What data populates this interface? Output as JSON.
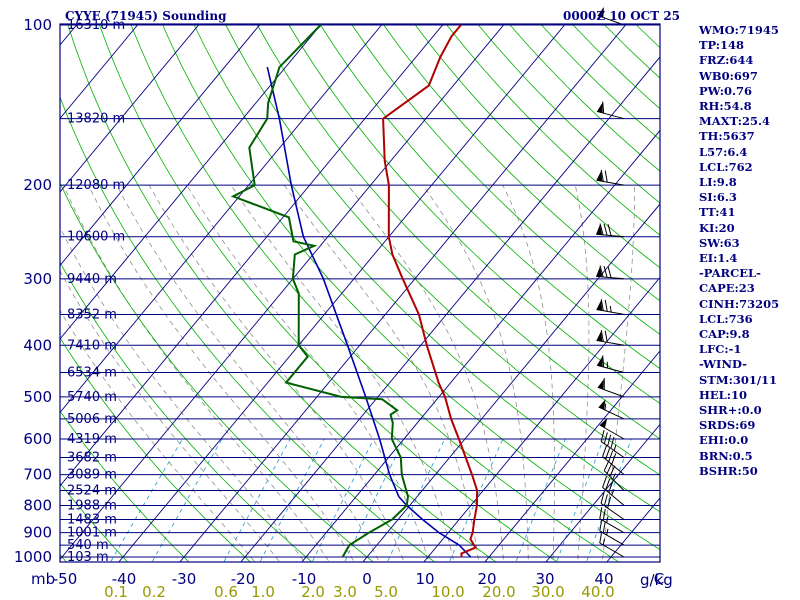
{
  "header": {
    "station": "CYYE (71945) Sounding",
    "time": "0000Z 10 OCT 25"
  },
  "colors": {
    "frame": "#000080",
    "isobar": "#000080",
    "isotherm": "#000080",
    "dry_adiabat": "#00b000",
    "moist_adiabat": "#909090",
    "mixing_ratio": "#33a0d0",
    "temperature": "#b00000",
    "dewpoint": "#006000",
    "parcel": "#0000b0",
    "wind": "#000000",
    "mixing_label": "#999900"
  },
  "chart_data": {
    "type": "skew-t",
    "pressure_axis": {
      "unit": "mb",
      "range": [
        1000,
        100
      ],
      "scale": "log",
      "ticks": [
        100,
        200,
        300,
        400,
        500,
        600,
        700,
        800,
        900,
        1000
      ]
    },
    "temperature_axis": {
      "unit": "C",
      "ticks": [
        -50,
        -40,
        -30,
        -20,
        -10,
        0,
        10,
        20,
        30,
        40
      ],
      "unit_label": "C"
    },
    "mixing_ratio_axis": {
      "unit": "g/kg",
      "ticks": [
        "0.1",
        "0.2",
        "0.6",
        "1.0",
        "2.0",
        "3.0",
        "5.0",
        "10.0",
        "20.0",
        "30.0",
        "40.0"
      ]
    },
    "height_labels": [
      {
        "p": 100,
        "label": "16310 m"
      },
      {
        "p": 150,
        "label": "13820 m"
      },
      {
        "p": 200,
        "label": "12080 m"
      },
      {
        "p": 250,
        "label": "10600 m"
      },
      {
        "p": 300,
        "label": "9440 m"
      },
      {
        "p": 350,
        "label": "8352 m"
      },
      {
        "p": 400,
        "label": "7410 m"
      },
      {
        "p": 450,
        "label": "6534 m"
      },
      {
        "p": 500,
        "label": "5740 m"
      },
      {
        "p": 550,
        "label": "5006 m"
      },
      {
        "p": 600,
        "label": "4319 m"
      },
      {
        "p": 650,
        "label": "3682 m"
      },
      {
        "p": 700,
        "label": "3089 m"
      },
      {
        "p": 750,
        "label": "2524 m"
      },
      {
        "p": 800,
        "label": "1988 m"
      },
      {
        "p": 850,
        "label": "1483 m"
      },
      {
        "p": 900,
        "label": "1001 m"
      },
      {
        "p": 950,
        "label": "540 m"
      },
      {
        "p": 1000,
        "label": "103 m"
      }
    ],
    "temperature_profile": [
      [
        1000,
        15.5
      ],
      [
        985,
        15
      ],
      [
        960,
        16.5
      ],
      [
        925,
        14.5
      ],
      [
        900,
        14
      ],
      [
        850,
        12.5
      ],
      [
        800,
        11
      ],
      [
        750,
        9
      ],
      [
        700,
        6
      ],
      [
        600,
        -1
      ],
      [
        550,
        -5
      ],
      [
        500,
        -9
      ],
      [
        470,
        -12
      ],
      [
        400,
        -19
      ],
      [
        350,
        -24.5
      ],
      [
        300,
        -32
      ],
      [
        270,
        -37
      ],
      [
        250,
        -40
      ],
      [
        200,
        -47
      ],
      [
        180,
        -51
      ],
      [
        150,
        -57
      ],
      [
        130,
        -54
      ],
      [
        115,
        -56
      ],
      [
        105,
        -57
      ],
      [
        100,
        -57
      ]
    ],
    "dewpoint_profile": [
      [
        1000,
        -4
      ],
      [
        950,
        -4.5
      ],
      [
        900,
        -3
      ],
      [
        850,
        -1
      ],
      [
        800,
        -0.5
      ],
      [
        770,
        -1.5
      ],
      [
        700,
        -5.5
      ],
      [
        650,
        -8
      ],
      [
        600,
        -12
      ],
      [
        560,
        -14
      ],
      [
        540,
        -15.5
      ],
      [
        530,
        -15
      ],
      [
        505,
        -19
      ],
      [
        500,
        -26
      ],
      [
        470,
        -37
      ],
      [
        420,
        -37
      ],
      [
        400,
        -40
      ],
      [
        320,
        -47
      ],
      [
        300,
        -50
      ],
      [
        270,
        -53
      ],
      [
        260,
        -51
      ],
      [
        255,
        -55
      ],
      [
        230,
        -59
      ],
      [
        210,
        -71
      ],
      [
        200,
        -69
      ],
      [
        170,
        -75
      ],
      [
        150,
        -76
      ],
      [
        140,
        -78
      ],
      [
        120,
        -81
      ],
      [
        100,
        -80
      ]
    ],
    "parcel_profile": [
      [
        1000,
        17
      ],
      [
        950,
        13.5
      ],
      [
        900,
        8.5
      ],
      [
        850,
        4
      ],
      [
        800,
        -0.5
      ],
      [
        770,
        -3
      ],
      [
        700,
        -7.5
      ],
      [
        600,
        -14
      ],
      [
        500,
        -22
      ],
      [
        400,
        -32
      ],
      [
        300,
        -45
      ],
      [
        250,
        -54
      ],
      [
        200,
        -63
      ],
      [
        150,
        -74
      ],
      [
        120,
        -83
      ]
    ],
    "winds": [
      {
        "p": 1000,
        "dir": 300,
        "kt": 15
      },
      {
        "p": 950,
        "dir": 300,
        "kt": 25
      },
      {
        "p": 900,
        "dir": 300,
        "kt": 25
      },
      {
        "p": 850,
        "dir": 305,
        "kt": 30
      },
      {
        "p": 800,
        "dir": 310,
        "kt": 35
      },
      {
        "p": 750,
        "dir": 315,
        "kt": 35
      },
      {
        "p": 700,
        "dir": 310,
        "kt": 40
      },
      {
        "p": 650,
        "dir": 305,
        "kt": 45
      },
      {
        "p": 600,
        "dir": 300,
        "kt": 50
      },
      {
        "p": 550,
        "dir": 295,
        "kt": 55
      },
      {
        "p": 500,
        "dir": 290,
        "kt": 60
      },
      {
        "p": 450,
        "dir": 285,
        "kt": 65
      },
      {
        "p": 400,
        "dir": 280,
        "kt": 70
      },
      {
        "p": 350,
        "dir": 280,
        "kt": 75
      },
      {
        "p": 300,
        "dir": 275,
        "kt": 80
      },
      {
        "p": 250,
        "dir": 275,
        "kt": 80
      },
      {
        "p": 200,
        "dir": 280,
        "kt": 70
      },
      {
        "p": 150,
        "dir": 285,
        "kt": 60
      },
      {
        "p": 100,
        "dir": 290,
        "kt": 50
      }
    ]
  },
  "indices": [
    "WMO:71945",
    "TP:148",
    "FRZ:644",
    "WB0:697",
    "PW:0.76",
    "RH:54.8",
    "MAXT:25.4",
    "TH:5637",
    "L57:6.4",
    "LCL:762",
    "LI:9.8",
    "SI:6.3",
    "TT:41",
    "KI:20",
    "SW:63",
    "EI:1.4",
    "-PARCEL-",
    "CAPE:23",
    "CINH:73205",
    "LCL:736",
    "CAP:9.8",
    "LFC:-1",
    "-WIND-",
    "STM:301/11",
    "HEL:10",
    "SHR+:0.0",
    "SRDS:69",
    "EHI:0.0",
    "BRN:0.5",
    "BSHR:50"
  ]
}
